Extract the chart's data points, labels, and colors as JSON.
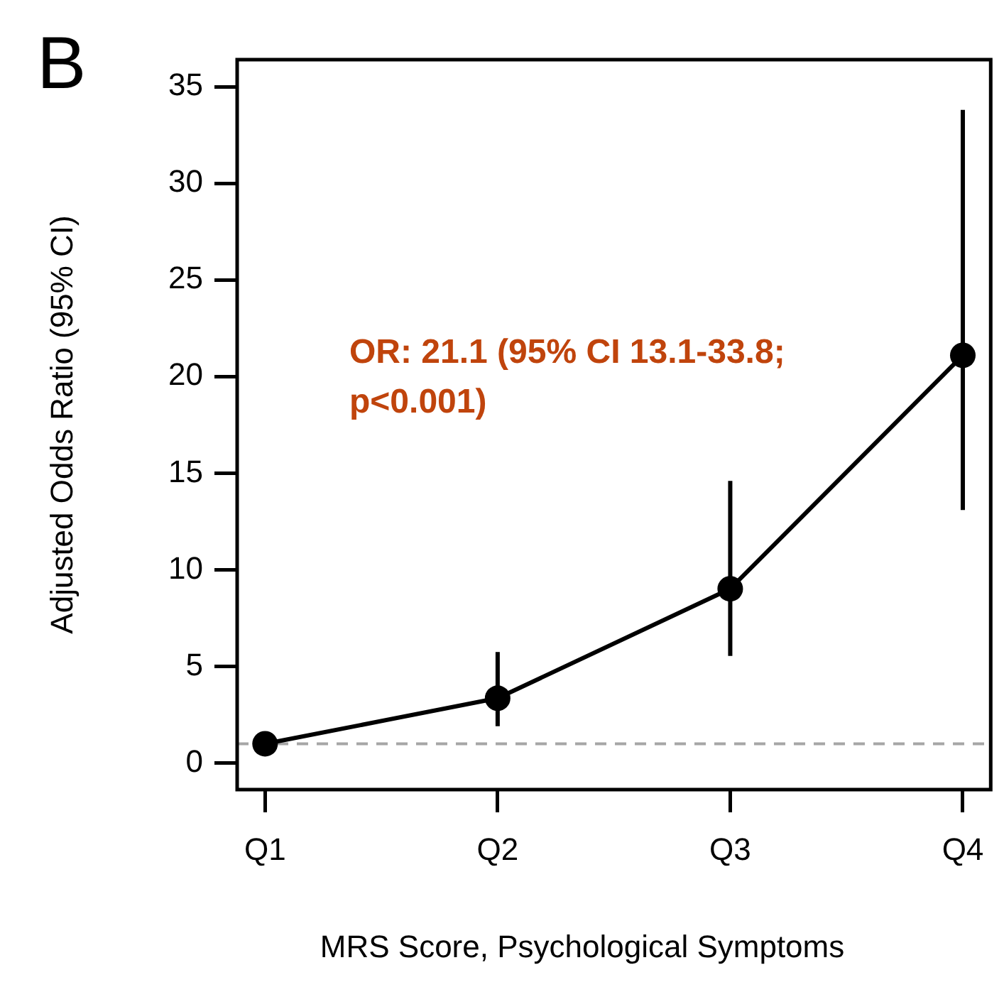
{
  "chart_data": {
    "type": "line",
    "title": "B",
    "xlabel": "MRS Score, Psychological Symptoms",
    "ylabel": "Adjusted Odds Ratio (95% CI)",
    "categories": [
      "Q1",
      "Q2",
      "Q3",
      "Q4"
    ],
    "series": [
      {
        "color": "#000000",
        "values": [
          1,
          3.36,
          9.02,
          21.1
        ],
        "errors": [
          null,
          [
            1.91,
            5.75
          ],
          [
            5.55,
            14.6
          ],
          [
            13.1,
            33.8
          ]
        ]
      }
    ],
    "ylim": [
      -1.37,
      36.4
    ],
    "yticks": [
      0,
      5,
      10,
      15,
      20,
      25,
      30,
      35
    ],
    "grid": false,
    "legend": false,
    "marker": "circle",
    "line_style": "solid",
    "ref_lines": [
      {
        "axis": "y",
        "value": 1,
        "color": "#a6a6a6",
        "line_style": "dashed"
      }
    ],
    "annotations": [
      "OR: 21.1 (95% CI 13.1-33.8;\np<0.001)"
    ]
  }
}
